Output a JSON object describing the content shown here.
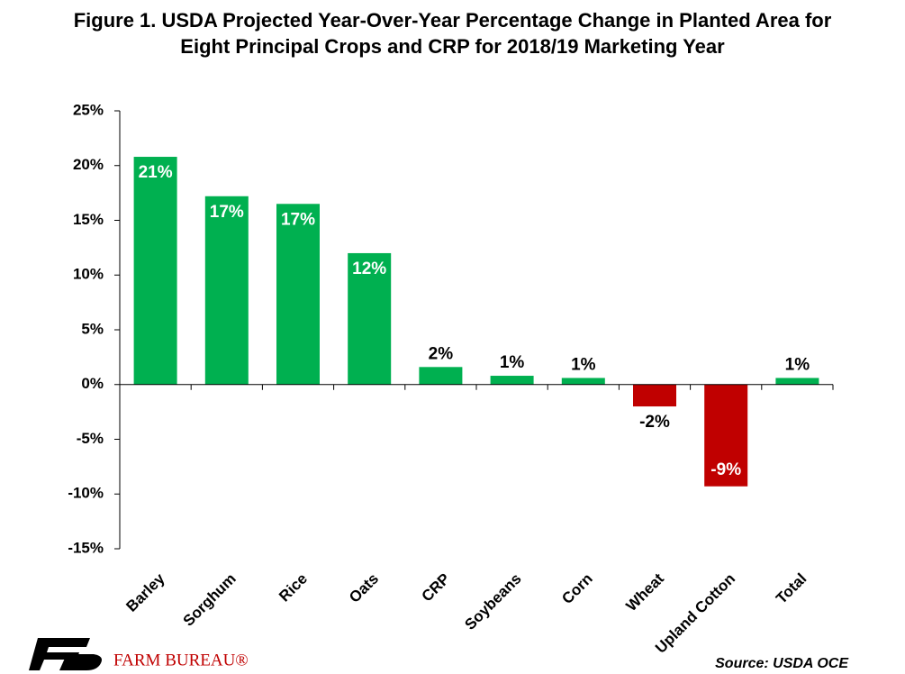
{
  "chart_data": {
    "type": "bar",
    "title": "Figure 1. USDA Projected Year-Over-Year Percentage Change in Planted Area for Eight Principal Crops and CRP for 2018/19 Marketing Year",
    "categories": [
      "Barley",
      "Sorghum",
      "Rice",
      "Oats",
      "CRP",
      "Soybeans",
      "Corn",
      "Wheat",
      "Upland Cotton",
      "Total"
    ],
    "values": [
      20.8,
      17.2,
      16.5,
      12.0,
      1.6,
      0.8,
      0.6,
      -2.0,
      -9.3,
      0.6
    ],
    "value_labels": [
      "21%",
      "17%",
      "17%",
      "12%",
      "2%",
      "1%",
      "1%",
      "-2%",
      "-9%",
      "1%"
    ],
    "color": "#00b050",
    "negative_color": "#c00000",
    "ylim": [
      -15,
      25
    ],
    "yticks": [
      {
        "value": -15,
        "label": "-15%"
      },
      {
        "value": -10,
        "label": "-10%"
      },
      {
        "value": -5,
        "label": "-5%"
      },
      {
        "value": 0,
        "label": "0%"
      },
      {
        "value": 5,
        "label": "5%"
      },
      {
        "value": 10,
        "label": "10%"
      },
      {
        "value": 15,
        "label": "15%"
      },
      {
        "value": 20,
        "label": "20%"
      },
      {
        "value": 25,
        "label": "25%"
      }
    ],
    "grid": false,
    "source": "Source: USDA OCE",
    "logo_text": "FARM BUREAU®"
  }
}
